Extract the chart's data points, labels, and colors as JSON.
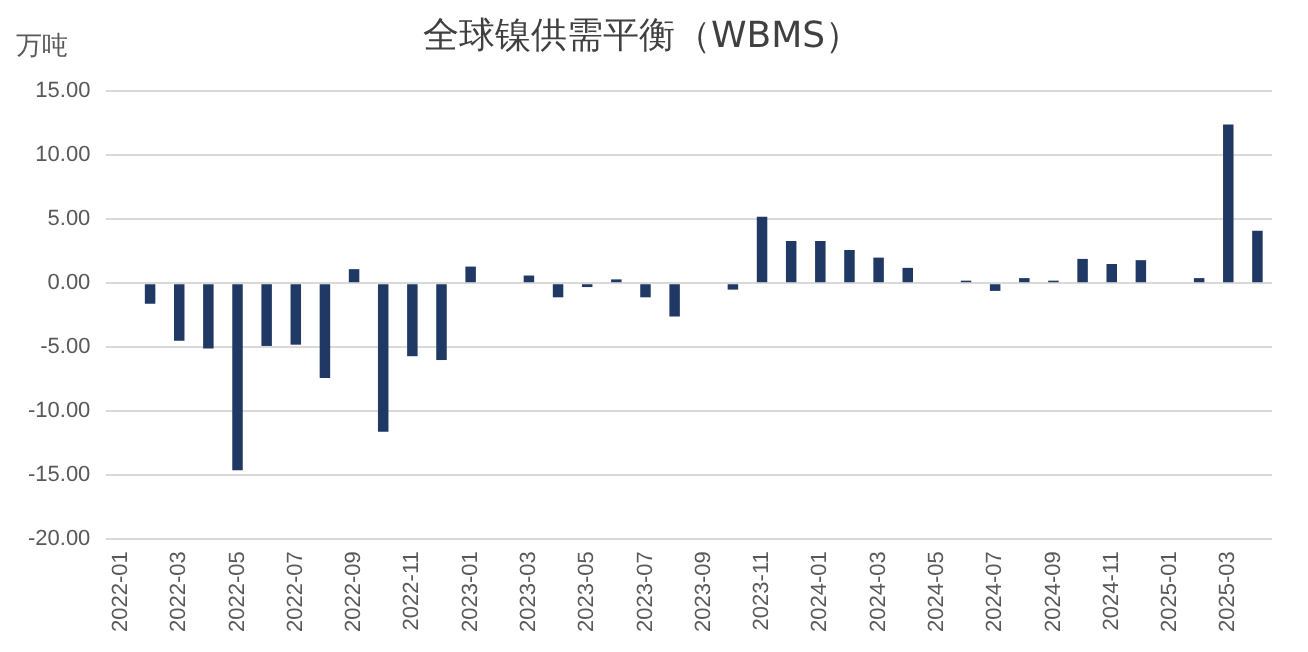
{
  "chart_data": {
    "type": "bar",
    "title": "全球镍供需平衡（WBMS）",
    "ylabel": "万吨",
    "categories": [
      "2022-01",
      null,
      "2022-03",
      null,
      "2022-05",
      null,
      "2022-07",
      null,
      "2022-09",
      null,
      "2022-11",
      null,
      "2023-01",
      null,
      "2023-03",
      null,
      "2023-05",
      null,
      "2023-07",
      null,
      "2023-09",
      null,
      "2023-11",
      null,
      "2024-01",
      null,
      "2024-03",
      null,
      "2024-05",
      null,
      "2024-07",
      null,
      "2024-09",
      null,
      "2024-11",
      null,
      "2025-01",
      null,
      "2025-03",
      null
    ],
    "values": [
      null,
      -1.6,
      -4.5,
      -5.1,
      -14.6,
      -4.9,
      -4.8,
      -7.4,
      1.1,
      -11.6,
      -5.7,
      -6.0,
      1.3,
      null,
      0.6,
      -1.1,
      -0.3,
      0.3,
      -1.1,
      -2.6,
      null,
      -0.5,
      5.2,
      3.3,
      3.3,
      2.6,
      2.0,
      1.2,
      null,
      0.2,
      -0.6,
      0.4,
      0.2,
      1.9,
      1.5,
      1.8,
      null,
      0.4,
      12.4,
      4.1
    ],
    "color": "#1f3864",
    "ylim": [
      -20,
      15
    ],
    "yticks": [
      {
        "value": -20,
        "label": "-20.00"
      },
      {
        "value": -15,
        "label": "-15.00"
      },
      {
        "value": -10,
        "label": "-10.00"
      },
      {
        "value": -5,
        "label": "-5.00"
      },
      {
        "value": 0,
        "label": "0.00"
      },
      {
        "value": 5,
        "label": "5.00"
      },
      {
        "value": 10,
        "label": "10.00"
      },
      {
        "value": 15,
        "label": "15.00"
      }
    ],
    "grid": "y"
  }
}
